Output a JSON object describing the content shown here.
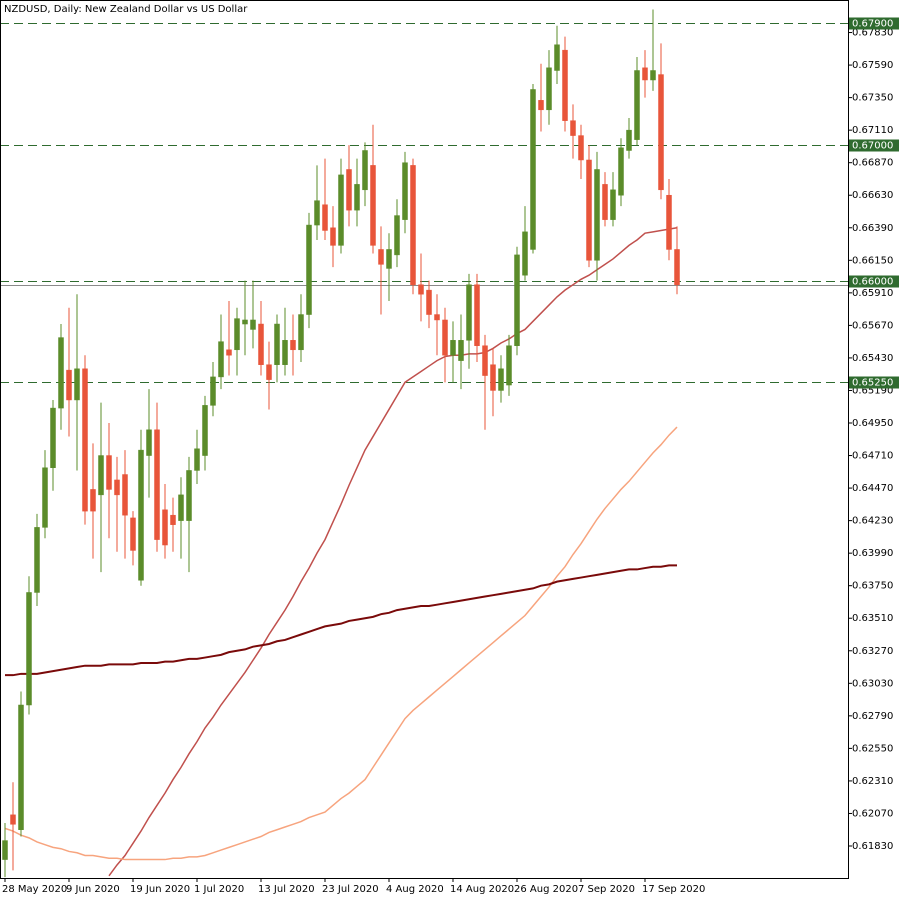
{
  "chart_data": {
    "type": "candlestick",
    "title": "NZDUSD, Daily:  New Zealand Dollar vs US Dollar",
    "categories": [
      "28 May 2020",
      null,
      null,
      null,
      null,
      null,
      null,
      null,
      "9 Jun 2020",
      null,
      null,
      null,
      null,
      null,
      null,
      null,
      "19 Jun 2020",
      null,
      null,
      null,
      null,
      null,
      null,
      null,
      "1 Jul 2020",
      null,
      null,
      null,
      null,
      null,
      null,
      null,
      "13 Jul 2020",
      null,
      null,
      null,
      null,
      null,
      null,
      null,
      "23 Jul 2020",
      null,
      null,
      null,
      null,
      null,
      null,
      null,
      "4 Aug 2020",
      null,
      null,
      null,
      null,
      null,
      null,
      null,
      "14 Aug 2020",
      null,
      null,
      null,
      null,
      null,
      null,
      null,
      "26 Aug 2020",
      null,
      null,
      null,
      null,
      null,
      null,
      null,
      "7 Sep 2020",
      null,
      null,
      null,
      null,
      null,
      null,
      null,
      "17 Sep 2020",
      null,
      null,
      null,
      null
    ],
    "open": [
      0.6173,
      0.6206,
      0.6195,
      0.6287,
      0.637,
      0.6418,
      0.6462,
      0.6506,
      0.6534,
      0.6512,
      0.6535,
      0.6446,
      0.6442,
      0.6471,
      0.6453,
      0.6457,
      0.6425,
      0.6379,
      0.6471,
      0.649,
      0.6431,
      0.6427,
      0.6423,
      0.6423,
      0.646,
      0.6471,
      0.6508,
      0.6529,
      0.6549,
      0.6549,
      0.6568,
      0.6564,
      0.6568,
      0.6538,
      0.6538,
      0.6538,
      0.6556,
      0.6549,
      0.6575,
      0.6641,
      0.6656,
      0.6639,
      0.6626,
      0.6682,
      0.6652,
      0.6667,
      0.6685,
      0.6623,
      0.6609,
      0.6619,
      0.6645,
      0.6685,
      0.6597,
      0.6593,
      0.6575,
      0.6571,
      0.6545,
      0.6541,
      0.6556,
      0.6597,
      0.6552,
      0.6538,
      0.6519,
      0.6523,
      0.6552,
      0.6604,
      0.6623,
      0.6733,
      0.6726,
      0.6755,
      0.677,
      0.6718,
      0.6707,
      0.6689,
      0.6615,
      0.6671,
      0.6645,
      0.6663,
      0.6696,
      0.6704,
      0.6757,
      0.6748,
      0.6752,
      0.6663,
      0.6623
    ],
    "high": [
      0.62,
      0.623,
      0.6297,
      0.6382,
      0.6428,
      0.6475,
      0.6512,
      0.6568,
      0.658,
      0.659,
      0.6545,
      0.648,
      0.651,
      0.6495,
      0.647,
      0.6475,
      0.643,
      0.649,
      0.652,
      0.651,
      0.645,
      0.644,
      0.6455,
      0.647,
      0.649,
      0.6515,
      0.654,
      0.6575,
      0.6585,
      0.658,
      0.66,
      0.66,
      0.6585,
      0.6555,
      0.6575,
      0.658,
      0.6575,
      0.659,
      0.665,
      0.6685,
      0.669,
      0.6655,
      0.669,
      0.67,
      0.669,
      0.6702,
      0.6715,
      0.664,
      0.6635,
      0.666,
      0.6695,
      0.669,
      0.662,
      0.66,
      0.659,
      0.658,
      0.657,
      0.6575,
      0.6605,
      0.6605,
      0.656,
      0.655,
      0.6545,
      0.656,
      0.6625,
      0.6655,
      0.6745,
      0.676,
      0.677,
      0.6788,
      0.678,
      0.673,
      0.6715,
      0.67,
      0.6695,
      0.668,
      0.668,
      0.6705,
      0.672,
      0.6765,
      0.677,
      0.68,
      0.6775,
      0.6675,
      0.664
    ],
    "low": [
      0.616,
      0.6165,
      0.619,
      0.628,
      0.636,
      0.641,
      0.6445,
      0.649,
      0.6485,
      0.646,
      0.642,
      0.6395,
      0.6385,
      0.641,
      0.64,
      0.6395,
      0.639,
      0.6375,
      0.644,
      0.64,
      0.6395,
      0.64,
      0.6395,
      0.6385,
      0.645,
      0.646,
      0.65,
      0.652,
      0.653,
      0.653,
      0.6545,
      0.655,
      0.653,
      0.6505,
      0.6525,
      0.653,
      0.653,
      0.654,
      0.6565,
      0.663,
      0.663,
      0.661,
      0.662,
      0.664,
      0.664,
      0.6655,
      0.662,
      0.6575,
      0.6585,
      0.661,
      0.6635,
      0.659,
      0.657,
      0.6565,
      0.6545,
      0.6525,
      0.6525,
      0.652,
      0.6535,
      0.654,
      0.649,
      0.65,
      0.651,
      0.6515,
      0.6545,
      0.66,
      0.662,
      0.671,
      0.6715,
      0.6745,
      0.671,
      0.669,
      0.6675,
      0.661,
      0.66,
      0.664,
      0.664,
      0.6655,
      0.669,
      0.67,
      0.6735,
      0.674,
      0.666,
      0.6615,
      0.659
    ],
    "close": [
      0.6187,
      0.6199,
      0.6287,
      0.637,
      0.6418,
      0.6462,
      0.6506,
      0.6558,
      0.6512,
      0.6535,
      0.643,
      0.643,
      0.6471,
      0.6446,
      0.6442,
      0.6427,
      0.6401,
      0.6475,
      0.649,
      0.6409,
      0.6405,
      0.642,
      0.6442,
      0.646,
      0.6476,
      0.6508,
      0.6529,
      0.6555,
      0.6545,
      0.6572,
      0.6571,
      0.6571,
      0.6538,
      0.6527,
      0.6568,
      0.6556,
      0.6549,
      0.6575,
      0.6641,
      0.6659,
      0.6637,
      0.6626,
      0.6678,
      0.6652,
      0.6671,
      0.6696,
      0.6626,
      0.6612,
      0.6623,
      0.6648,
      0.6687,
      0.6597,
      0.659,
      0.6575,
      0.6571,
      0.6545,
      0.6556,
      0.6556,
      0.6597,
      0.6552,
      0.653,
      0.6519,
      0.6535,
      0.6552,
      0.6619,
      0.6636,
      0.6741,
      0.6726,
      0.6757,
      0.6774,
      0.6718,
      0.6707,
      0.6689,
      0.6615,
      0.6682,
      0.6645,
      0.6667,
      0.6698,
      0.6711,
      0.6755,
      0.6748,
      0.6755,
      0.6667,
      0.6623,
      0.6597
    ],
    "up_color": "#5b8c2a",
    "down_color": "#e8553a",
    "lines": [
      {
        "color": "#c0504d",
        "values": [
          null,
          null,
          null,
          null,
          null,
          null,
          null,
          null,
          null,
          null,
          null,
          null,
          null,
          0.6161,
          0.6169,
          0.6176,
          0.6185,
          0.6194,
          0.6204,
          0.6213,
          0.6222,
          0.6232,
          0.6241,
          0.6251,
          0.626,
          0.627,
          0.6278,
          0.6287,
          0.6295,
          0.6303,
          0.6311,
          0.632,
          0.6329,
          0.6339,
          0.6348,
          0.6357,
          0.6367,
          0.6378,
          0.6388,
          0.6399,
          0.6409,
          0.6422,
          0.6435,
          0.6449,
          0.6462,
          0.6475,
          0.6485,
          0.6495,
          0.6505,
          0.6515,
          0.6525,
          0.6529,
          0.6533,
          0.6537,
          0.6541,
          0.6544,
          0.6545,
          0.6545,
          0.6546,
          0.6546,
          0.6547,
          0.655,
          0.6554,
          0.6557,
          0.6561,
          0.6564,
          0.657,
          0.6576,
          0.6582,
          0.6588,
          0.6593,
          0.6597,
          0.6601,
          0.6604,
          0.6608,
          0.6612,
          0.6616,
          0.6621,
          0.6626,
          0.663,
          0.6635,
          0.6636,
          0.6637,
          0.6638,
          0.6639
        ]
      },
      {
        "color": "#f7a47e",
        "values": [
          0.6196,
          0.6194,
          0.6191,
          0.6189,
          0.6186,
          0.6184,
          0.6182,
          0.6181,
          0.6179,
          0.6178,
          0.6176,
          0.6176,
          0.6175,
          0.6174,
          0.6174,
          0.6173,
          0.6173,
          0.6173,
          0.6173,
          0.6173,
          0.6173,
          0.6174,
          0.6174,
          0.6175,
          0.6175,
          0.6176,
          0.6178,
          0.618,
          0.6182,
          0.6184,
          0.6186,
          0.6188,
          0.619,
          0.6193,
          0.6195,
          0.6197,
          0.6199,
          0.6201,
          0.6204,
          0.6206,
          0.6208,
          0.6213,
          0.6218,
          0.6222,
          0.6227,
          0.6232,
          0.6241,
          0.625,
          0.6259,
          0.6268,
          0.6277,
          0.6283,
          0.6288,
          0.6293,
          0.6298,
          0.6303,
          0.6308,
          0.6313,
          0.6318,
          0.6323,
          0.6328,
          0.6333,
          0.6338,
          0.6343,
          0.6348,
          0.6353,
          0.636,
          0.6367,
          0.6374,
          0.6382,
          0.6389,
          0.6398,
          0.6406,
          0.6415,
          0.6424,
          0.6432,
          0.6439,
          0.6446,
          0.6452,
          0.6459,
          0.6466,
          0.6473,
          0.6479,
          0.6486,
          0.6492
        ]
      },
      {
        "color": "#7a0a0a",
        "values": [
          0.6309,
          0.6309,
          0.631,
          0.631,
          0.631,
          0.6311,
          0.6312,
          0.6313,
          0.6314,
          0.6315,
          0.6316,
          0.6316,
          0.6316,
          0.6317,
          0.6317,
          0.6317,
          0.6317,
          0.6318,
          0.6318,
          0.6318,
          0.6319,
          0.6319,
          0.632,
          0.6321,
          0.6321,
          0.6322,
          0.6323,
          0.6324,
          0.6326,
          0.6327,
          0.6328,
          0.633,
          0.6331,
          0.6332,
          0.6334,
          0.6335,
          0.6337,
          0.6339,
          0.6341,
          0.6343,
          0.6345,
          0.6346,
          0.6347,
          0.6349,
          0.635,
          0.6351,
          0.6352,
          0.6354,
          0.6355,
          0.6357,
          0.6358,
          0.6359,
          0.636,
          0.636,
          0.6361,
          0.6362,
          0.6363,
          0.6364,
          0.6365,
          0.6366,
          0.6367,
          0.6368,
          0.6369,
          0.637,
          0.6371,
          0.6372,
          0.6373,
          0.6375,
          0.6376,
          0.6378,
          0.6379,
          0.638,
          0.6381,
          0.6382,
          0.6383,
          0.6384,
          0.6385,
          0.6386,
          0.6387,
          0.6387,
          0.6388,
          0.6389,
          0.6389,
          0.639,
          0.639
        ]
      }
    ],
    "levels": [
      {
        "value": 0.679,
        "label": "0.67900"
      },
      {
        "value": 0.67,
        "label": "0.67000"
      },
      {
        "value": 0.66,
        "label": "0.66000"
      },
      {
        "value": 0.6525,
        "label": "0.65250"
      }
    ],
    "level_color": "#2f6b2f",
    "ylim": [
      0.61594,
      0.6807
    ],
    "yticks": [
      {
        "value": 0.6783,
        "label": "0.67830"
      },
      {
        "value": 0.6759,
        "label": "0.67590"
      },
      {
        "value": 0.6735,
        "label": "0.67350"
      },
      {
        "value": 0.6711,
        "label": "0.67110"
      },
      {
        "value": 0.6687,
        "label": "0.66870"
      },
      {
        "value": 0.6663,
        "label": "0.66630"
      },
      {
        "value": 0.6639,
        "label": "0.66390"
      },
      {
        "value": 0.6615,
        "label": "0.66150"
      },
      {
        "value": 0.6591,
        "label": "0.65910"
      },
      {
        "value": 0.6567,
        "label": "0.65670"
      },
      {
        "value": 0.6543,
        "label": "0.65430"
      },
      {
        "value": 0.6519,
        "label": "0.65190"
      },
      {
        "value": 0.6495,
        "label": "0.64950"
      },
      {
        "value": 0.6471,
        "label": "0.64710"
      },
      {
        "value": 0.6447,
        "label": "0.64470"
      },
      {
        "value": 0.6423,
        "label": "0.64230"
      },
      {
        "value": 0.6399,
        "label": "0.63990"
      },
      {
        "value": 0.6375,
        "label": "0.63750"
      },
      {
        "value": 0.6351,
        "label": "0.63510"
      },
      {
        "value": 0.6327,
        "label": "0.63270"
      },
      {
        "value": 0.6303,
        "label": "0.63030"
      },
      {
        "value": 0.6279,
        "label": "0.62790"
      },
      {
        "value": 0.6255,
        "label": "0.62550"
      },
      {
        "value": 0.6231,
        "label": "0.62310"
      },
      {
        "value": 0.6207,
        "label": "0.62070"
      },
      {
        "value": 0.6183,
        "label": "0.61830"
      }
    ]
  }
}
